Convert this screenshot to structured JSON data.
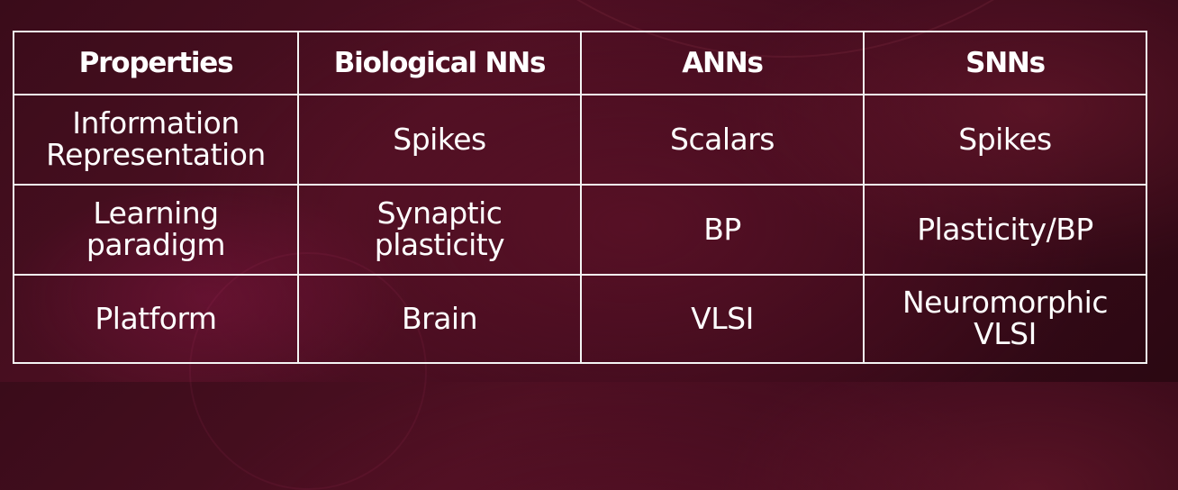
{
  "table": {
    "headers": [
      "Properties",
      "Biological NNs",
      "ANNs",
      "SNNs"
    ],
    "rows": [
      {
        "property": [
          "Information",
          "Representation"
        ],
        "biological": [
          "Spikes"
        ],
        "ann": [
          "Scalars"
        ],
        "snn": [
          "Spikes"
        ]
      },
      {
        "property": [
          "Learning",
          "paradigm"
        ],
        "biological": [
          "Synaptic",
          "plasticity"
        ],
        "ann": [
          "BP"
        ],
        "snn": [
          "Plasticity/BP"
        ]
      },
      {
        "property": [
          "Platform"
        ],
        "biological": [
          "Brain"
        ],
        "ann": [
          "VLSI"
        ],
        "snn": [
          "Neuromorphic",
          "VLSI"
        ]
      }
    ]
  },
  "colors": {
    "background": "#3f0b1d",
    "grid_line": "#f4f4f4",
    "text": "#ffffff"
  }
}
